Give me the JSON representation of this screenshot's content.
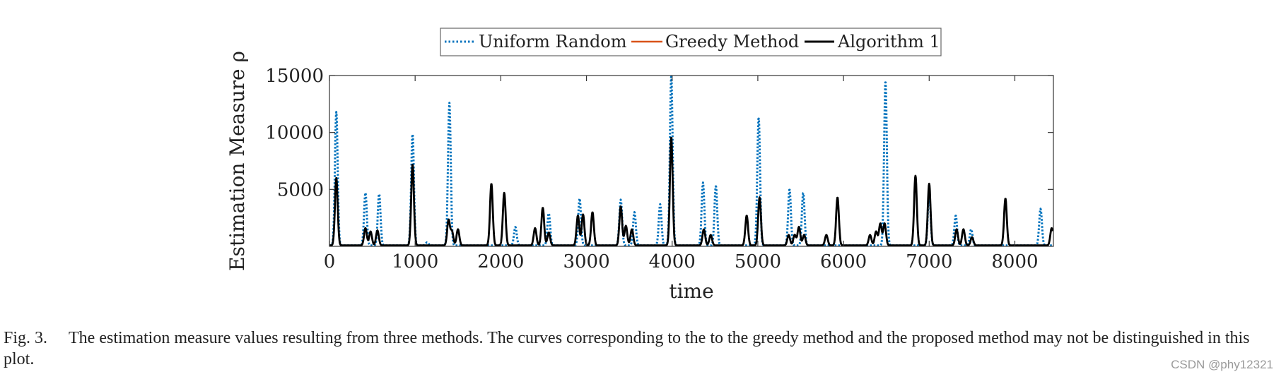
{
  "chart_data": {
    "type": "line",
    "title": "",
    "xlabel": "time",
    "ylabel": "Estimation Measure ρ",
    "xlim": [
      0,
      8450
    ],
    "ylim": [
      0,
      15000
    ],
    "x_ticks": [
      0,
      1000,
      2000,
      3000,
      4000,
      5000,
      6000,
      7000,
      8000
    ],
    "y_ticks": [
      5000,
      10000,
      15000
    ],
    "x_tick_labels": [
      "0",
      "1000",
      "2000",
      "3000",
      "4000",
      "5000",
      "6000",
      "7000",
      "8000"
    ],
    "y_tick_labels": [
      "5000",
      "10000",
      "15000"
    ],
    "grid": false,
    "legend_position": "top",
    "series": [
      {
        "name": "Uniform Random",
        "color": "#0072BD",
        "style": "dotted",
        "peaks": [
          [
            80,
            11800
          ],
          [
            420,
            4700
          ],
          [
            580,
            4600
          ],
          [
            970,
            9900
          ],
          [
            1140,
            350
          ],
          [
            1400,
            12600
          ],
          [
            2170,
            1700
          ],
          [
            2560,
            2900
          ],
          [
            2920,
            4200
          ],
          [
            3400,
            4100
          ],
          [
            3560,
            3000
          ],
          [
            3860,
            3700
          ],
          [
            3990,
            15000
          ],
          [
            4360,
            5600
          ],
          [
            4510,
            5300
          ],
          [
            5010,
            11300
          ],
          [
            5370,
            5000
          ],
          [
            5530,
            4700
          ],
          [
            6490,
            14500
          ],
          [
            7000,
            4800
          ],
          [
            7310,
            2700
          ],
          [
            7490,
            1500
          ],
          [
            8300,
            3300
          ]
        ]
      },
      {
        "name": "Greedy Method",
        "color": "#D95319",
        "style": "solid",
        "peaks": []
      },
      {
        "name": "Algorithm 1",
        "color": "#000000",
        "style": "solid",
        "peaks": [
          [
            80,
            6000
          ],
          [
            420,
            1600
          ],
          [
            480,
            1300
          ],
          [
            560,
            1400
          ],
          [
            970,
            7200
          ],
          [
            1390,
            2300
          ],
          [
            1430,
            1300
          ],
          [
            1500,
            1500
          ],
          [
            1890,
            5500
          ],
          [
            2040,
            4700
          ],
          [
            2400,
            1600
          ],
          [
            2490,
            3400
          ],
          [
            2560,
            1200
          ],
          [
            2900,
            2700
          ],
          [
            2960,
            2800
          ],
          [
            3070,
            3000
          ],
          [
            3400,
            3500
          ],
          [
            3460,
            1800
          ],
          [
            3530,
            1500
          ],
          [
            3990,
            9600
          ],
          [
            4370,
            1500
          ],
          [
            4450,
            1000
          ],
          [
            4870,
            2700
          ],
          [
            5020,
            4300
          ],
          [
            5360,
            1000
          ],
          [
            5430,
            1000
          ],
          [
            5480,
            1700
          ],
          [
            5540,
            1000
          ],
          [
            5800,
            1000
          ],
          [
            5930,
            4300
          ],
          [
            6310,
            1000
          ],
          [
            6380,
            1300
          ],
          [
            6430,
            2000
          ],
          [
            6480,
            2000
          ],
          [
            6840,
            6200
          ],
          [
            7000,
            5500
          ],
          [
            7320,
            1500
          ],
          [
            7400,
            1500
          ],
          [
            7500,
            800
          ],
          [
            7890,
            4200
          ],
          [
            8430,
            1600
          ]
        ]
      }
    ]
  },
  "caption": {
    "label": "Fig. 3.",
    "text": "The estimation measure values resulting from three methods. The curves corresponding to the to the greedy method and the proposed method may not be distinguished in this plot."
  },
  "watermark": "CSDN @phy12321"
}
